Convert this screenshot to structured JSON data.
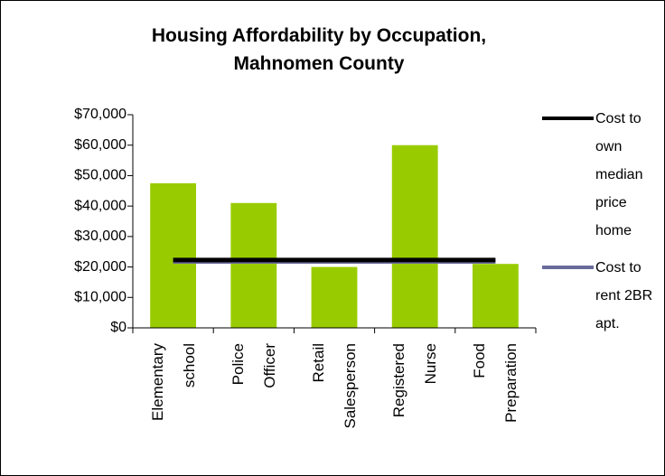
{
  "chart_data": {
    "type": "bar",
    "title": "Housing Affordability by Occupation, Mahnomen County",
    "categories": [
      "Elementary school",
      "Police Officer",
      "Retail Salesperson",
      "Registered Nurse",
      "Food Preparation"
    ],
    "values": [
      47500,
      41000,
      20000,
      60000,
      21000
    ],
    "color": "#99cc00",
    "series": [
      {
        "name": "Cost to own median price home",
        "color": "#000000",
        "values": [
          22300,
          22300,
          22300,
          22300,
          22300
        ]
      },
      {
        "name": "Cost to rent 2BR apt.",
        "color": "#6b6b9b",
        "values": [
          21800,
          21800,
          21800,
          21800,
          21800
        ]
      }
    ],
    "ylim": [
      0,
      70000
    ],
    "yticks": [
      {
        "value": 0,
        "label": "$0"
      },
      {
        "value": 10000,
        "label": "$10,000"
      },
      {
        "value": 20000,
        "label": "$20,000"
      },
      {
        "value": 30000,
        "label": "$30,000"
      },
      {
        "value": 40000,
        "label": "$40,000"
      },
      {
        "value": 50000,
        "label": "$50,000"
      },
      {
        "value": 60000,
        "label": "$60,000"
      },
      {
        "value": 70000,
        "label": "$70,000"
      }
    ],
    "legend": "right"
  }
}
